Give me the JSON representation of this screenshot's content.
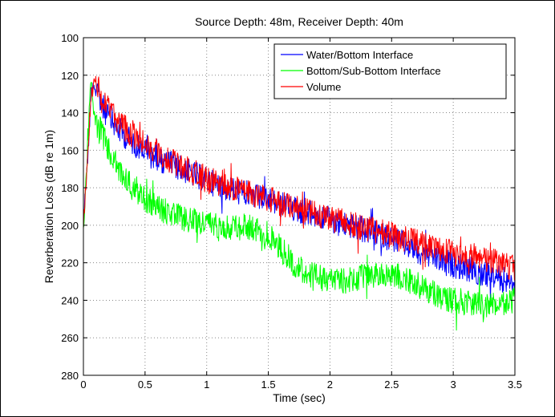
{
  "chart_data": {
    "type": "line",
    "title": "Source Depth: 48m, Receiver Depth: 40m",
    "xlabel": "Time (sec)",
    "ylabel": "Reverberation Loss (dB re 1m)",
    "xlim": [
      0,
      3.5
    ],
    "ylim": [
      100,
      280
    ],
    "y_inverted": true,
    "grid": true,
    "legend_position": "top-right",
    "x_ticks": [
      "0",
      "0.5",
      "1",
      "1.5",
      "2",
      "2.5",
      "3",
      "3.5"
    ],
    "y_ticks": [
      "100",
      "120",
      "140",
      "160",
      "180",
      "200",
      "220",
      "240",
      "260",
      "280"
    ],
    "x_tick_values": [
      0,
      0.5,
      1,
      1.5,
      2,
      2.5,
      3,
      3.5
    ],
    "y_tick_values": [
      100,
      120,
      140,
      160,
      180,
      200,
      220,
      240,
      260,
      280
    ],
    "series": [
      {
        "name": "Water/Bottom Interface",
        "color": "#0000ff",
        "x": [
          0,
          0.02,
          0.04,
          0.06,
          0.08,
          0.1,
          0.15,
          0.2,
          0.3,
          0.4,
          0.5,
          0.6,
          0.7,
          0.8,
          0.9,
          1.0,
          1.1,
          1.2,
          1.3,
          1.4,
          1.5,
          1.6,
          1.7,
          1.8,
          1.9,
          2.0,
          2.1,
          2.2,
          2.3,
          2.4,
          2.5,
          2.6,
          2.7,
          2.8,
          2.9,
          3.0,
          3.1,
          3.2,
          3.3,
          3.4,
          3.5
        ],
        "values": [
          200,
          176,
          160,
          130,
          124,
          128,
          136,
          142,
          150,
          156,
          160,
          164,
          167,
          170,
          173,
          176,
          179,
          181,
          183,
          185,
          187,
          189,
          191,
          193,
          195,
          197,
          199,
          201,
          203,
          205,
          207,
          210,
          213,
          216,
          219,
          221,
          223,
          225,
          227,
          229,
          231
        ]
      },
      {
        "name": "Bottom/Sub-Bottom Interface",
        "color": "#00ff00",
        "x": [
          0,
          0.02,
          0.04,
          0.06,
          0.08,
          0.1,
          0.15,
          0.2,
          0.3,
          0.4,
          0.5,
          0.6,
          0.7,
          0.8,
          0.9,
          1.0,
          1.1,
          1.2,
          1.3,
          1.4,
          1.5,
          1.6,
          1.7,
          1.8,
          1.9,
          2.0,
          2.1,
          2.2,
          2.3,
          2.4,
          2.5,
          2.6,
          2.7,
          2.8,
          2.9,
          3.0,
          3.1,
          3.2,
          3.3,
          3.4,
          3.5
        ],
        "values": [
          202,
          178,
          150,
          122,
          138,
          145,
          150,
          160,
          172,
          180,
          186,
          190,
          194,
          196,
          198,
          199,
          200,
          201,
          200,
          202,
          205,
          212,
          220,
          225,
          228,
          229,
          230,
          229,
          227,
          226,
          226,
          228,
          231,
          235,
          238,
          240,
          241,
          242,
          243,
          242,
          240
        ]
      },
      {
        "name": "Volume",
        "color": "#ff0000",
        "x": [
          0,
          0.02,
          0.04,
          0.06,
          0.08,
          0.1,
          0.15,
          0.2,
          0.3,
          0.4,
          0.5,
          0.6,
          0.7,
          0.8,
          0.9,
          1.0,
          1.1,
          1.2,
          1.3,
          1.4,
          1.5,
          1.6,
          1.7,
          1.8,
          1.9,
          2.0,
          2.1,
          2.2,
          2.3,
          2.4,
          2.5,
          2.6,
          2.7,
          2.8,
          2.9,
          3.0,
          3.1,
          3.2,
          3.3,
          3.4,
          3.5
        ],
        "values": [
          198,
          178,
          158,
          132,
          126,
          124,
          132,
          138,
          146,
          152,
          157,
          161,
          165,
          169,
          172,
          175,
          178,
          180,
          182,
          184,
          186,
          188,
          190,
          192,
          194,
          196,
          198,
          200,
          202,
          203,
          205,
          207,
          209,
          211,
          213,
          215,
          216,
          217,
          219,
          221,
          223
        ]
      }
    ]
  }
}
